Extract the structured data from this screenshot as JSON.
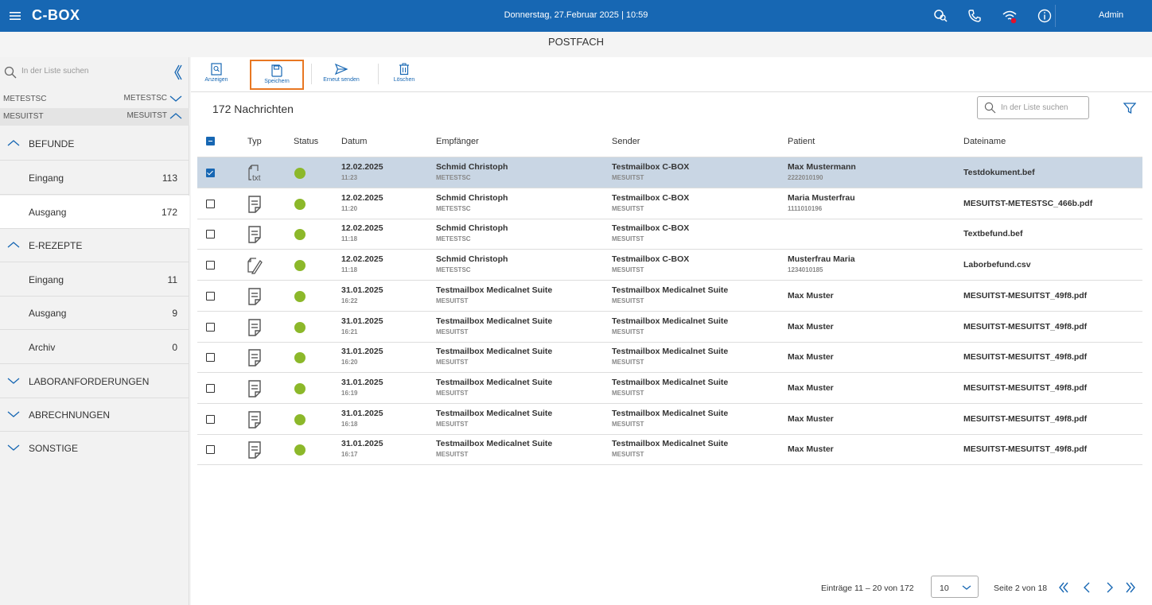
{
  "topbar": {
    "app_title": "C-BOX",
    "datetime": "Donnerstag, 27.Februar 2025 | 10:59",
    "user": "Admin"
  },
  "page_title": "POSTFACH",
  "sidebar": {
    "search_placeholder": "In der Liste suchen",
    "mailboxes": [
      {
        "left": "METESTSC",
        "right": "METESTSC",
        "expanded": false
      },
      {
        "left": "MESUITST",
        "right": "MESUITST",
        "expanded": true
      }
    ],
    "sections": {
      "befunde": {
        "label": "BEFUNDE",
        "items": [
          {
            "label": "Eingang",
            "count": "113"
          },
          {
            "label": "Ausgang",
            "count": "172"
          }
        ]
      },
      "erezepte": {
        "label": "E-REZEPTE",
        "items": [
          {
            "label": "Eingang",
            "count": "11"
          },
          {
            "label": "Ausgang",
            "count": "9"
          },
          {
            "label": "Archiv",
            "count": "0"
          }
        ]
      },
      "labor": {
        "label": "LABORANFORDERUNGEN"
      },
      "abrechnungen": {
        "label": "ABRECHNUNGEN"
      },
      "sonstige": {
        "label": "SONSTIGE"
      }
    }
  },
  "toolbar": {
    "anzeigen": "Anzeigen",
    "speichern": "Speichern",
    "erneut": "Erneut senden",
    "loeschen": "Löschen"
  },
  "list": {
    "count_label": "172 Nachrichten",
    "search_placeholder": "In der Liste suchen",
    "headers": {
      "typ": "Typ",
      "status": "Status",
      "datum": "Datum",
      "empfaenger": "Empfänger",
      "sender": "Sender",
      "patient": "Patient",
      "dateiname": "Dateiname"
    },
    "rows": [
      {
        "type": "txt",
        "date": "12.02.2025",
        "time": "11:23",
        "emp": "Schmid Christoph",
        "emp_id": "METESTSC",
        "sender": "Testmailbox C-BOX",
        "sender_id": "MESUITST",
        "patient": "Max Mustermann",
        "patient_id": "2222010190",
        "file": "Testdokument.bef"
      },
      {
        "type": "doc",
        "date": "12.02.2025",
        "time": "11:20",
        "emp": "Schmid Christoph",
        "emp_id": "METESTSC",
        "sender": "Testmailbox C-BOX",
        "sender_id": "MESUITST",
        "patient": "Maria Musterfrau",
        "patient_id": "1111010196",
        "file": "MESUITST-METESTSC_466b.pdf"
      },
      {
        "type": "doc",
        "date": "12.02.2025",
        "time": "11:18",
        "emp": "Schmid Christoph",
        "emp_id": "METESTSC",
        "sender": "Testmailbox C-BOX",
        "sender_id": "MESUITST",
        "patient": "",
        "patient_id": "",
        "file": "Textbefund.bef"
      },
      {
        "type": "edit",
        "date": "12.02.2025",
        "time": "11:18",
        "emp": "Schmid Christoph",
        "emp_id": "METESTSC",
        "sender": "Testmailbox C-BOX",
        "sender_id": "MESUITST",
        "patient": "Musterfrau Maria",
        "patient_id": "1234010185",
        "file": "Laborbefund.csv"
      },
      {
        "type": "doc",
        "date": "31.01.2025",
        "time": "16:22",
        "emp": "Testmailbox Medicalnet Suite",
        "emp_id": "MESUITST",
        "sender": "Testmailbox Medicalnet Suite",
        "sender_id": "MESUITST",
        "patient": "Max Muster",
        "patient_id": "",
        "file": "MESUITST-MESUITST_49f8.pdf"
      },
      {
        "type": "doc",
        "date": "31.01.2025",
        "time": "16:21",
        "emp": "Testmailbox Medicalnet Suite",
        "emp_id": "MESUITST",
        "sender": "Testmailbox Medicalnet Suite",
        "sender_id": "MESUITST",
        "patient": "Max Muster",
        "patient_id": "",
        "file": "MESUITST-MESUITST_49f8.pdf"
      },
      {
        "type": "doc",
        "date": "31.01.2025",
        "time": "16:20",
        "emp": "Testmailbox Medicalnet Suite",
        "emp_id": "MESUITST",
        "sender": "Testmailbox Medicalnet Suite",
        "sender_id": "MESUITST",
        "patient": "Max Muster",
        "patient_id": "",
        "file": "MESUITST-MESUITST_49f8.pdf"
      },
      {
        "type": "doc",
        "date": "31.01.2025",
        "time": "16:19",
        "emp": "Testmailbox Medicalnet Suite",
        "emp_id": "MESUITST",
        "sender": "Testmailbox Medicalnet Suite",
        "sender_id": "MESUITST",
        "patient": "Max Muster",
        "patient_id": "",
        "file": "MESUITST-MESUITST_49f8.pdf"
      },
      {
        "type": "doc",
        "date": "31.01.2025",
        "time": "16:18",
        "emp": "Testmailbox Medicalnet Suite",
        "emp_id": "MESUITST",
        "sender": "Testmailbox Medicalnet Suite",
        "sender_id": "MESUITST",
        "patient": "Max Muster",
        "patient_id": "",
        "file": "MESUITST-MESUITST_49f8.pdf"
      },
      {
        "type": "doc",
        "date": "31.01.2025",
        "time": "16:17",
        "emp": "Testmailbox Medicalnet Suite",
        "emp_id": "MESUITST",
        "sender": "Testmailbox Medicalnet Suite",
        "sender_id": "MESUITST",
        "patient": "Max Muster",
        "patient_id": "",
        "file": "MESUITST-MESUITST_49f8.pdf"
      }
    ]
  },
  "pager": {
    "entries": "Einträge 11 – 20 von 172",
    "page_size": "10",
    "page": "Seite 2 von 18"
  },
  "colors": {
    "primary": "#1767b3",
    "status_ok": "#8cb82a",
    "highlight": "#e87722"
  }
}
